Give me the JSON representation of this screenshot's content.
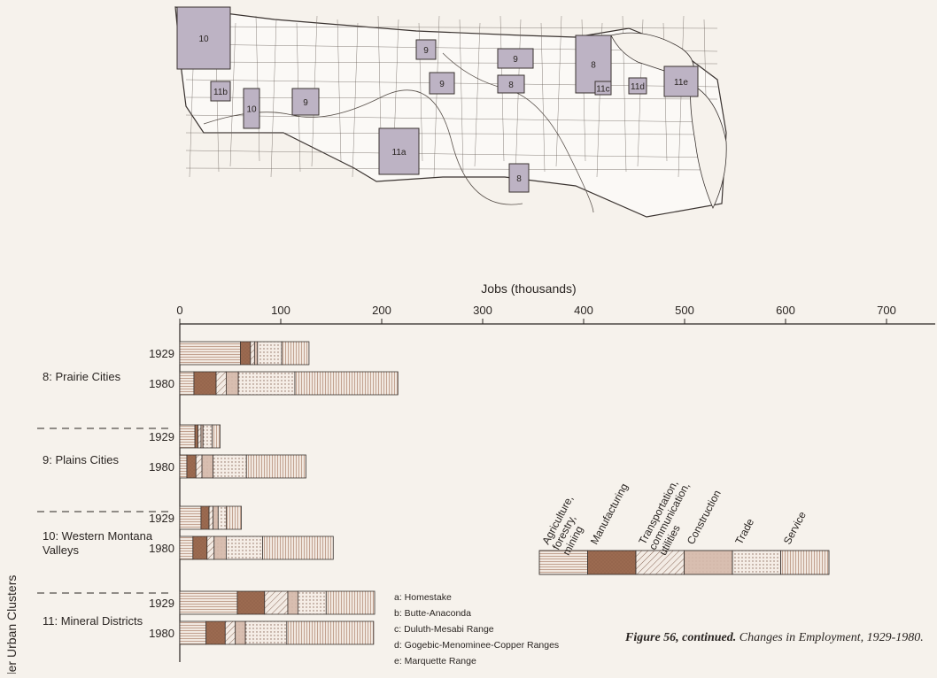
{
  "map": {
    "region_labels": [
      "10",
      "11b",
      "10",
      "9",
      "11a",
      "9",
      "9",
      "9",
      "8",
      "8",
      "8",
      "11c",
      "11d",
      "11e"
    ]
  },
  "chart_data": {
    "type": "bar",
    "stacked": true,
    "orientation": "horizontal",
    "xlabel": "Jobs (thousands)",
    "ylabel": "Smaller Urban Clusters",
    "xlim": [
      0,
      700
    ],
    "xticks": [
      0,
      100,
      200,
      300,
      400,
      500,
      600,
      700
    ],
    "groups": [
      {
        "name": "8: Prairie Cities",
        "years": [
          {
            "year": "1929",
            "segments": [
              60,
              10,
              4,
              3,
              24,
              27
            ]
          },
          {
            "year": "1980",
            "segments": [
              14,
              22,
              10,
              12,
              56,
              102
            ]
          }
        ]
      },
      {
        "name": "9: Plains Cities",
        "years": [
          {
            "year": "1929",
            "segments": [
              15,
              3,
              3,
              2,
              9,
              8
            ]
          },
          {
            "year": "1980",
            "segments": [
              7,
              9,
              6,
              11,
              33,
              59
            ]
          }
        ]
      },
      {
        "name": "10: Western Montana Valleys",
        "years": [
          {
            "year": "1929",
            "segments": [
              21,
              8,
              4,
              5,
              8,
              15
            ]
          },
          {
            "year": "1980",
            "segments": [
              13,
              14,
              7,
              12,
              36,
              70
            ]
          }
        ]
      },
      {
        "name": "11: Mineral Districts",
        "years": [
          {
            "year": "1929",
            "segments": [
              57,
              27,
              23,
              10,
              28,
              48
            ]
          },
          {
            "year": "1980",
            "segments": [
              26,
              19,
              10,
              10,
              41,
              86
            ]
          }
        ]
      }
    ],
    "series": [
      {
        "name": "Agriculture, forestry, mining",
        "pattern": "hlines",
        "color": "#b8927d"
      },
      {
        "name": "Manufacturing",
        "pattern": "solid",
        "color": "#9b6a50"
      },
      {
        "name": "Transportation, communication, utilities",
        "pattern": "diag",
        "color": "#8a6a5a"
      },
      {
        "name": "Construction",
        "pattern": "solid-light",
        "color": "#d8beb0"
      },
      {
        "name": "Trade",
        "pattern": "dots",
        "color": "#8a6a5a"
      },
      {
        "name": "Service",
        "pattern": "vlines",
        "color": "#b8927d"
      }
    ],
    "legend_labels": [
      "Agriculture,\nforestry,\nmining",
      "Manufacturing",
      "Transportation,\ncommunication,\nutilities",
      "Construction",
      "Trade",
      "Service"
    ],
    "footnotes": [
      "a: Homestake",
      "b: Butte-Anaconda",
      "c: Duluth-Mesabi Range",
      "d: Gogebic-Menominee-Copper Ranges",
      "e: Marquette Range"
    ]
  },
  "caption": {
    "bold": "Figure 56, continued.",
    "rest": " Changes in Employment, 1929-1980."
  }
}
